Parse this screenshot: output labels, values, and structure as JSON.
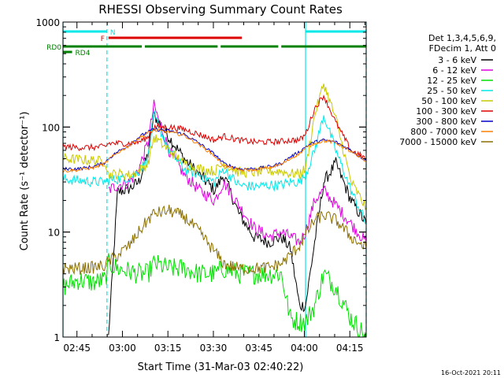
{
  "chart_data": {
    "type": "line",
    "title": "RHESSI Observing Summary Count Rates",
    "xlabel": "Start Time (31-Mar-03 02:40:22)",
    "ylabel": "Count Rate (s⁻¹ detector⁻¹)",
    "yscale": "log",
    "ylim": [
      1,
      1000
    ],
    "xlim_minutes": [
      0,
      100
    ],
    "x_tick_labels": [
      "02:45",
      "03:00",
      "03:15",
      "03:30",
      "03:45",
      "04:00",
      "04:15"
    ],
    "x_tick_minutes": [
      4.6,
      19.6,
      34.6,
      49.6,
      64.6,
      79.6,
      94.6
    ],
    "y_tick_labels": [
      "1",
      "10",
      "100",
      "1000"
    ],
    "y_tick_values": [
      1,
      10,
      100,
      1000
    ],
    "legend_header": [
      "Det 1,3,4,5,6,9,",
      "FDecim 1, Att 0"
    ],
    "legend_position": "right",
    "footer_date": "16-Oct-2021 20:11",
    "flags": [
      {
        "label": "N",
        "color": "#00e8e8",
        "segments": [
          [
            0,
            14.5
          ],
          [
            80,
            100
          ]
        ]
      },
      {
        "label": "F",
        "color": "#dd0000",
        "segments": [
          [
            15,
            59
          ]
        ]
      },
      {
        "label": "RD0",
        "color": "#008000",
        "segments": [
          [
            0,
            26
          ],
          [
            27,
            51
          ],
          [
            52,
            71
          ],
          [
            72,
            100
          ]
        ]
      },
      {
        "label": "RD4",
        "color": "#008000",
        "segments": [
          [
            0,
            3
          ]
        ]
      }
    ],
    "vertical_lines": [
      {
        "x": 0,
        "color": "#00e8e8",
        "style": "solid"
      },
      {
        "x": 14.5,
        "color": "#00e8e8",
        "style": "dashed"
      },
      {
        "x": 80,
        "color": "#00e8e8",
        "style": "solid"
      },
      {
        "x": 100,
        "color": "#00e8e8",
        "style": "dashed"
      }
    ],
    "x": [
      0,
      5,
      10,
      14,
      15,
      18,
      22,
      25,
      28,
      30,
      35,
      40,
      45,
      50,
      53,
      58,
      63,
      68,
      72,
      75,
      78,
      80,
      83,
      86,
      90,
      95,
      100
    ],
    "series": [
      {
        "name": "3 - 6 keV",
        "color": "#000000",
        "values": [
          null,
          null,
          null,
          null,
          1,
          24,
          26,
          30,
          55,
          130,
          80,
          50,
          35,
          25,
          35,
          15,
          9,
          8,
          9,
          7,
          2,
          2,
          8,
          30,
          45,
          20,
          12
        ]
      },
      {
        "name": "6 - 12 keV",
        "color": "#e000e0",
        "values": [
          null,
          null,
          null,
          null,
          25,
          28,
          30,
          40,
          70,
          160,
          60,
          35,
          25,
          20,
          30,
          18,
          11,
          9,
          10,
          9,
          8,
          10,
          20,
          25,
          18,
          12,
          8
        ]
      },
      {
        "name": "12 - 25 keV",
        "color": "#00e000",
        "values": [
          3,
          3.5,
          3.3,
          3.5,
          5,
          4.5,
          4.2,
          4,
          4,
          5,
          4.5,
          4.5,
          4,
          4,
          4.5,
          4,
          4,
          4,
          4,
          1.5,
          1.4,
          1.4,
          2,
          4,
          3,
          1.5,
          1
        ]
      },
      {
        "name": "25 - 50 keV",
        "color": "#00e8e8",
        "values": [
          32,
          31,
          30,
          30,
          31,
          32,
          33,
          38,
          50,
          130,
          60,
          40,
          35,
          30,
          40,
          28,
          27,
          28,
          28,
          30,
          30,
          35,
          60,
          130,
          60,
          25,
          12
        ]
      },
      {
        "name": "50 - 100 keV",
        "color": "#c8c800",
        "values": [
          50,
          49,
          48,
          47,
          35,
          36,
          35,
          38,
          45,
          80,
          60,
          45,
          40,
          38,
          45,
          37,
          37,
          38,
          38,
          36,
          36,
          40,
          130,
          260,
          120,
          30,
          17
        ]
      },
      {
        "name": "100 - 300 keV",
        "color": "#dd0000",
        "values": [
          65,
          64,
          64,
          65,
          70,
          70,
          70,
          72,
          80,
          100,
          100,
          95,
          85,
          75,
          82,
          75,
          72,
          72,
          73,
          75,
          75,
          85,
          150,
          200,
          110,
          60,
          50
        ]
      },
      {
        "name": "300 - 800 keV",
        "color": "#0000c8",
        "values": [
          40,
          40,
          42,
          46,
          50,
          58,
          68,
          80,
          90,
          95,
          92,
          85,
          70,
          55,
          45,
          40,
          40,
          42,
          45,
          52,
          58,
          65,
          72,
          75,
          72,
          60,
          48
        ]
      },
      {
        "name": "800 - 7000 keV",
        "color": "#ff8000",
        "values": [
          38,
          39,
          41,
          45,
          49,
          57,
          67,
          78,
          88,
          93,
          90,
          83,
          68,
          53,
          43,
          39,
          39,
          41,
          44,
          50,
          56,
          63,
          70,
          74,
          71,
          58,
          47
        ]
      },
      {
        "name": "7000 - 15000 keV",
        "color": "#8b7000",
        "values": [
          4.5,
          4.5,
          4.6,
          4.8,
          5.2,
          6,
          7.5,
          10,
          13,
          15,
          16,
          14,
          10,
          6.5,
          5,
          4.5,
          4.5,
          4.6,
          5,
          6,
          7.5,
          9.5,
          13,
          14.5,
          13,
          9,
          7
        ]
      }
    ]
  }
}
